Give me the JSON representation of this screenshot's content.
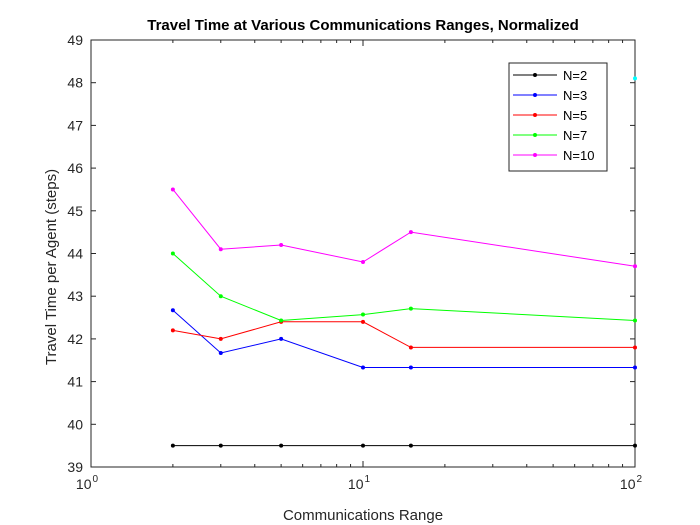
{
  "chart_data": {
    "type": "line",
    "title": "Travel Time at Various Communications Ranges, Normalized",
    "xlabel": "Communications Range",
    "ylabel": "Travel Time per Agent (steps)",
    "xscale": "log",
    "xlim": [
      1,
      100
    ],
    "ylim": [
      39,
      49
    ],
    "yticks": [
      39,
      40,
      41,
      42,
      43,
      44,
      45,
      46,
      47,
      48,
      49
    ],
    "xticks": [
      {
        "value": 1,
        "base": "10",
        "exp": "0"
      },
      {
        "value": 10,
        "base": "10",
        "exp": "1"
      },
      {
        "value": 100,
        "base": "10",
        "exp": "2"
      }
    ],
    "grid": false,
    "legend_position": "top-right",
    "x": [
      2,
      3,
      5,
      10,
      15,
      100
    ],
    "series": [
      {
        "name": "N=2",
        "color": "#000000",
        "values": [
          39.5,
          39.5,
          39.5,
          39.5,
          39.5,
          39.5
        ]
      },
      {
        "name": "N=3",
        "color": "#0000ff",
        "values": [
          42.67,
          41.67,
          42.0,
          41.33,
          41.33,
          41.33
        ]
      },
      {
        "name": "N=5",
        "color": "#ff0000",
        "values": [
          42.2,
          42.0,
          42.4,
          42.4,
          41.8,
          41.8
        ]
      },
      {
        "name": "N=7",
        "color": "#00ff00",
        "values": [
          44.0,
          43.0,
          42.43,
          42.57,
          42.71,
          42.43
        ]
      },
      {
        "name": "N=10",
        "color": "#ff00ff",
        "values": [
          45.5,
          44.1,
          44.2,
          43.8,
          44.5,
          43.7
        ]
      }
    ],
    "extra_point": {
      "color": "#00ffff",
      "x": 100,
      "y": 48.1
    }
  }
}
